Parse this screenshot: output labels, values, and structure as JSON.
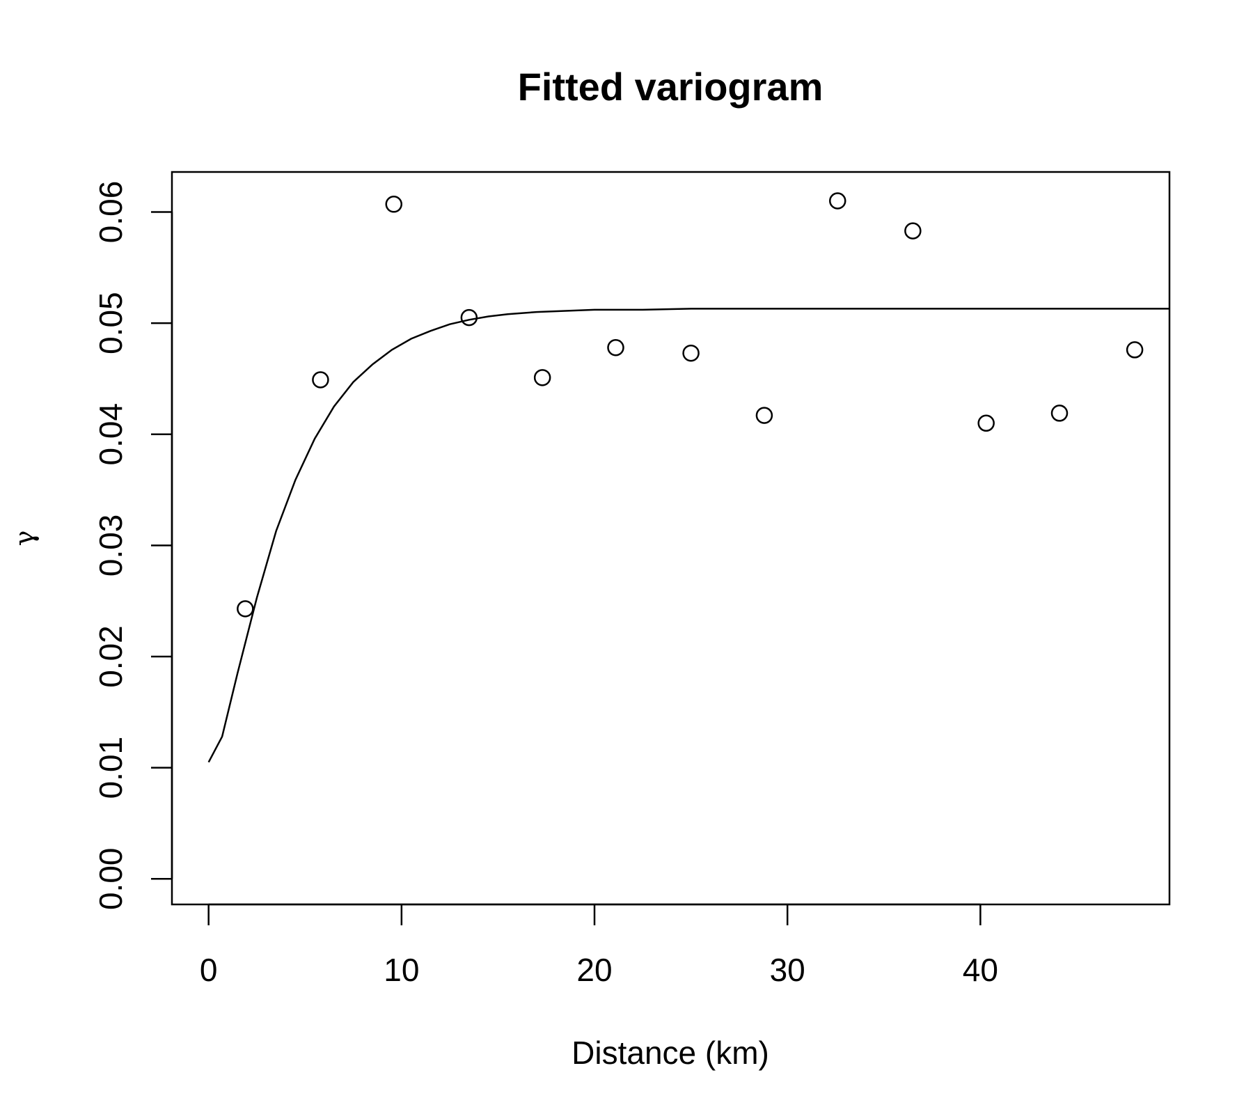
{
  "chart_data": {
    "type": "scatter",
    "title": "Fitted variogram",
    "xlabel": "Distance (km)",
    "ylabel": "γ",
    "xlim": [
      -1.9,
      49.8
    ],
    "ylim": [
      -0.0023,
      0.0636
    ],
    "x_ticks": [
      0,
      10,
      20,
      30,
      40
    ],
    "x_tick_labels": [
      "0",
      "10",
      "20",
      "30",
      "40"
    ],
    "y_ticks": [
      0.0,
      0.01,
      0.02,
      0.03,
      0.04,
      0.05,
      0.06
    ],
    "y_tick_labels": [
      "0.00",
      "0.01",
      "0.02",
      "0.03",
      "0.04",
      "0.05",
      "0.06"
    ],
    "grid": false,
    "legend": "none",
    "series": [
      {
        "type": "scatter",
        "marker": "open-circle",
        "x": [
          1.9,
          5.8,
          9.6,
          13.5,
          17.3,
          21.1,
          25.0,
          28.8,
          32.6,
          36.5,
          40.3,
          44.1,
          48.0
        ],
        "y": [
          0.0243,
          0.0449,
          0.0607,
          0.0505,
          0.0451,
          0.0478,
          0.0473,
          0.0417,
          0.061,
          0.0583,
          0.041,
          0.0419,
          0.0476
        ]
      },
      {
        "type": "line",
        "x": [
          0,
          0.7,
          1.5,
          2.5,
          3.5,
          4.5,
          5.5,
          6.5,
          7.5,
          8.5,
          9.5,
          10.5,
          11.5,
          12.5,
          13.5,
          14.5,
          15.5,
          17,
          18.5,
          20,
          22.5,
          25,
          30,
          35,
          40,
          45,
          49.8
        ],
        "y": [
          0.0105,
          0.0128,
          0.0185,
          0.0253,
          0.0313,
          0.0359,
          0.0396,
          0.0425,
          0.0447,
          0.0463,
          0.0476,
          0.0486,
          0.0493,
          0.0499,
          0.0503,
          0.0506,
          0.0508,
          0.051,
          0.0511,
          0.0512,
          0.0512,
          0.0513,
          0.0513,
          0.0513,
          0.0513,
          0.0513,
          0.0513
        ]
      }
    ]
  }
}
